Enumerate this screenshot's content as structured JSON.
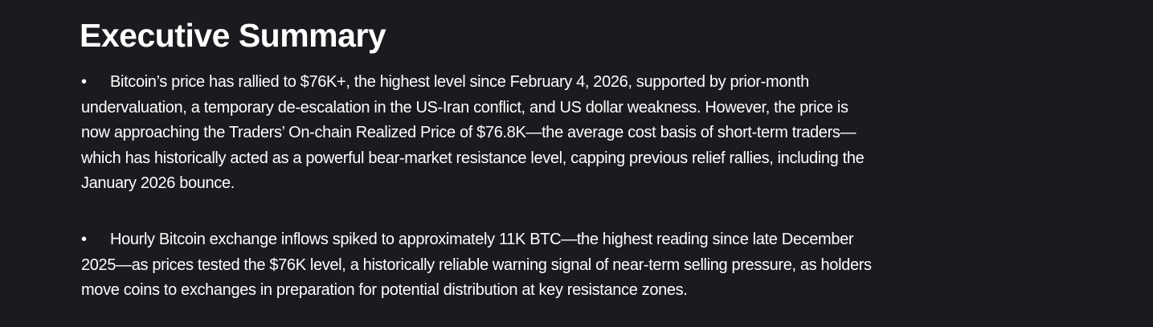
{
  "title": "Executive Summary",
  "bullets": [
    {
      "lines": [
        "Bitcoin’s price has rallied to $76K+, the highest level since February 4, 2026, supported by prior-month",
        "undervaluation, a temporary de-escalation in the US-Iran conflict, and US dollar weakness. However, the price is",
        "now approaching the Traders’ On-chain Realized Price of $76.8K—the average cost basis of short-term traders—",
        "which has historically acted as a powerful bear-market resistance level, capping previous relief rallies, including the",
        "January 2026 bounce."
      ]
    },
    {
      "lines": [
        "Hourly Bitcoin exchange inflows spiked to approximately 11K BTC—the highest reading since late December",
        "2025—as prices tested the $76K level, a historically reliable warning signal of near-term selling pressure, as holders",
        "move coins to exchanges in preparation for potential distribution at key resistance zones."
      ]
    }
  ],
  "bullet_glyph": "•"
}
